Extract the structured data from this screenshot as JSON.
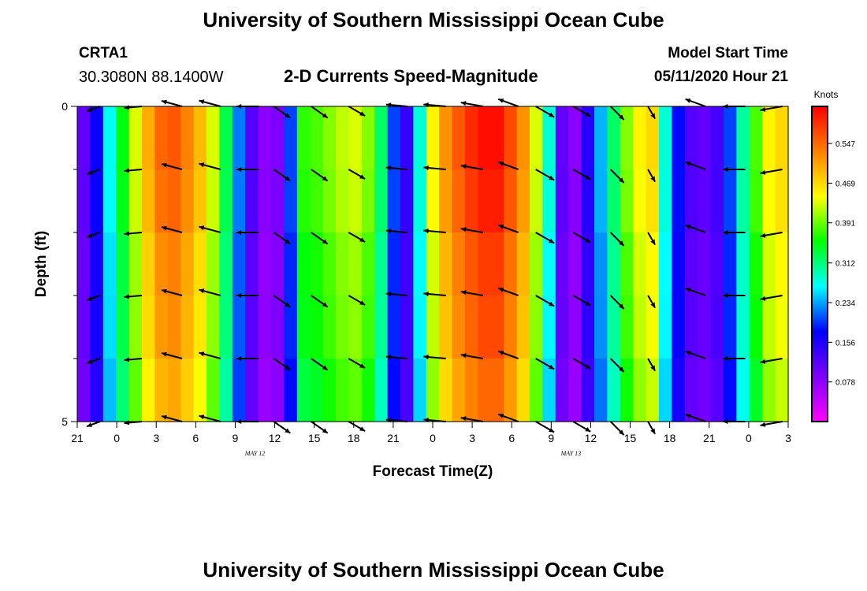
{
  "header": {
    "title_top": "University of Southern Mississippi Ocean Cube",
    "title_bottom": "University of Southern Mississippi Ocean Cube",
    "station": "CRTA1",
    "coords": "30.3080N 88.1400W",
    "model_start_label": "Model Start Time",
    "model_start_value": "05/11/2020 Hour 21"
  },
  "colors": {
    "scale": [
      "#ff00ff",
      "#8000ff",
      "#0000ff",
      "#00ffff",
      "#00ff00",
      "#ffff00",
      "#ff8000",
      "#ff0000"
    ],
    "arrow": "#000000"
  },
  "chart_data": {
    "type": "heatmap",
    "title": "2-D Currents Speed-Magnitude",
    "xlabel": "Forecast Time(Z)",
    "ylabel": "Depth (ft)",
    "x_ticks": [
      "21",
      "0",
      "3",
      "6",
      "9",
      "12",
      "15",
      "18",
      "21",
      "0",
      "3",
      "6",
      "9",
      "12",
      "15",
      "18",
      "21",
      "0",
      "3"
    ],
    "date_labels": [
      {
        "label": "MAY 12",
        "after_tick": 4
      },
      {
        "label": "MAY 13",
        "after_tick": 12
      }
    ],
    "y_ticks": [
      "0",
      "5"
    ],
    "ylim": [
      0,
      5
    ],
    "colorbar": {
      "unit": "Knots",
      "ticks": [
        "0.547",
        "0.469",
        "0.391",
        "0.312",
        "0.234",
        "0.156",
        "0.078"
      ],
      "range": [
        0.0,
        0.62
      ]
    },
    "speed_by_hour": [
      0.11,
      0.17,
      0.27,
      0.35,
      0.43,
      0.5,
      0.55,
      0.56,
      0.53,
      0.49,
      0.43,
      0.33,
      0.22,
      0.12,
      0.08,
      0.09,
      0.2,
      0.37,
      0.38,
      0.4,
      0.42,
      0.43,
      0.4,
      0.32,
      0.2,
      0.14,
      0.28,
      0.45,
      0.52,
      0.56,
      0.59,
      0.61,
      0.61,
      0.57,
      0.52,
      0.43,
      0.28,
      0.11,
      0.08,
      0.15,
      0.24,
      0.32,
      0.4,
      0.45,
      0.47,
      0.28,
      0.18,
      0.12,
      0.11,
      0.13,
      0.2,
      0.3,
      0.38,
      0.45,
      0.47
    ],
    "arrows_columns": [
      {
        "dir": 200,
        "len": 0.6
      },
      {
        "dir": 185,
        "len": 0.75
      },
      {
        "dir": 165,
        "len": 0.9
      },
      {
        "dir": 165,
        "len": 0.95
      },
      {
        "dir": 180,
        "len": 0.95
      },
      {
        "dir": 325,
        "len": 0.85
      },
      {
        "dir": 325,
        "len": 0.85
      },
      {
        "dir": 330,
        "len": 0.8
      },
      {
        "dir": 175,
        "len": 0.9
      },
      {
        "dir": 175,
        "len": 0.95
      },
      {
        "dir": 170,
        "len": 0.95
      },
      {
        "dir": 160,
        "len": 0.9
      },
      {
        "dir": 330,
        "len": 0.9
      },
      {
        "dir": 330,
        "len": 0.85
      },
      {
        "dir": 315,
        "len": 0.8
      },
      {
        "dir": 300,
        "len": 0.6
      },
      {
        "dir": 160,
        "len": 0.9
      },
      {
        "dir": 180,
        "len": 0.95
      },
      {
        "dir": 190,
        "len": 0.95
      }
    ]
  }
}
